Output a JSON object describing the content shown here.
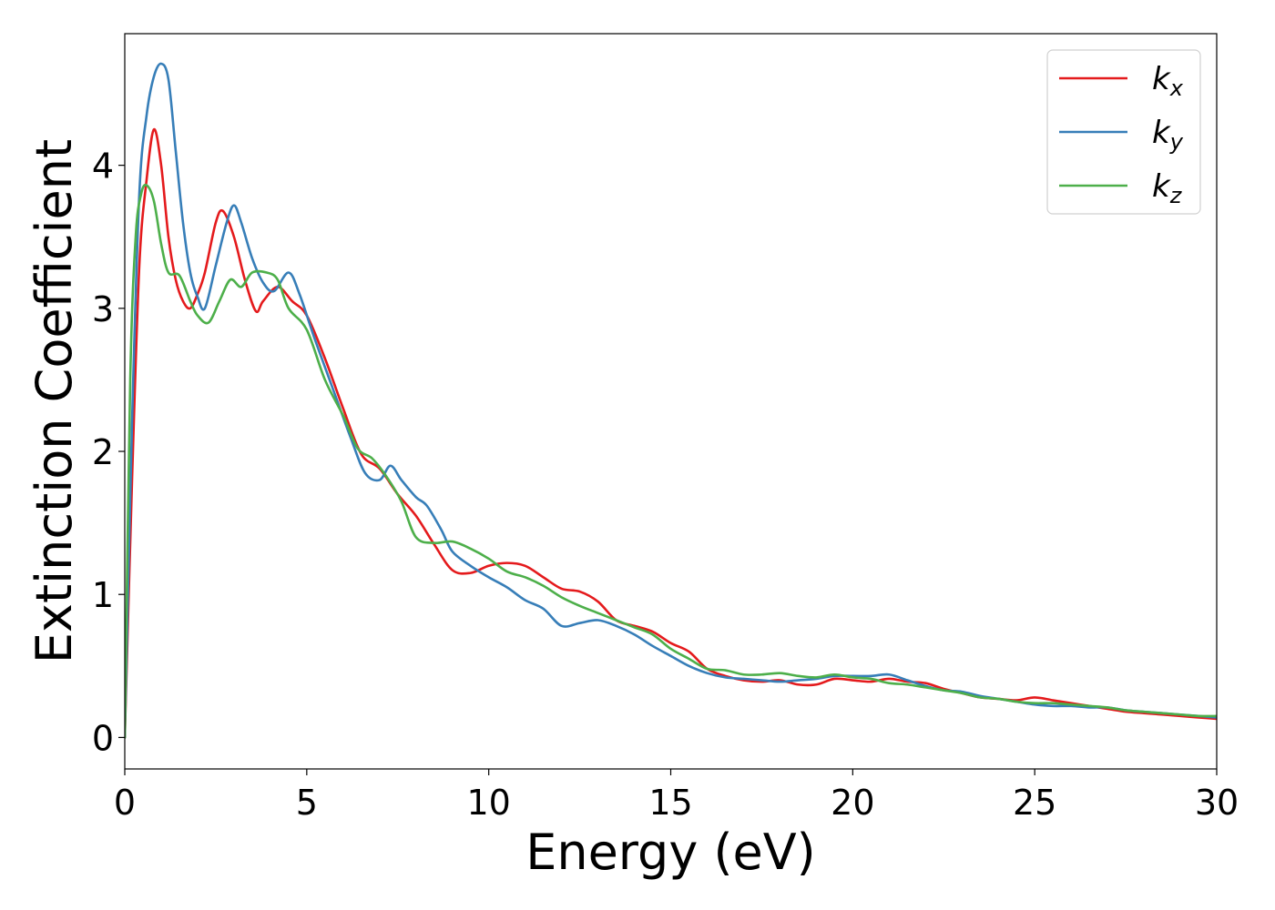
{
  "chart_data": {
    "type": "line",
    "title": "",
    "xlabel": "Energy (eV)",
    "ylabel": "Extinction Coefficient",
    "xlim": [
      0,
      30
    ],
    "ylim": [
      -0.22,
      4.92
    ],
    "xticks": [
      0,
      5,
      10,
      15,
      20,
      25,
      30
    ],
    "xtick_labels": [
      "0",
      "5",
      "10",
      "15",
      "20",
      "25",
      "30"
    ],
    "yticks": [
      0,
      1,
      2,
      3,
      4
    ],
    "ytick_labels": [
      "0",
      "1",
      "2",
      "3",
      "4"
    ],
    "grid": false,
    "legend_position": "top-right",
    "series": [
      {
        "name": "k_x",
        "legend_base": "k",
        "legend_sub": "x",
        "color": "#e41a1c",
        "points": [
          [
            0,
            0
          ],
          [
            0.2,
            1.8
          ],
          [
            0.4,
            3.3
          ],
          [
            0.6,
            3.9
          ],
          [
            0.8,
            4.25
          ],
          [
            1.0,
            4.0
          ],
          [
            1.2,
            3.5
          ],
          [
            1.4,
            3.2
          ],
          [
            1.6,
            3.05
          ],
          [
            1.8,
            3.0
          ],
          [
            2.0,
            3.1
          ],
          [
            2.2,
            3.25
          ],
          [
            2.5,
            3.6
          ],
          [
            2.7,
            3.68
          ],
          [
            3.0,
            3.5
          ],
          [
            3.3,
            3.2
          ],
          [
            3.6,
            2.98
          ],
          [
            3.8,
            3.05
          ],
          [
            4.2,
            3.15
          ],
          [
            4.6,
            3.05
          ],
          [
            5.0,
            2.95
          ],
          [
            5.5,
            2.65
          ],
          [
            6.0,
            2.3
          ],
          [
            6.5,
            1.98
          ],
          [
            7.0,
            1.88
          ],
          [
            7.5,
            1.7
          ],
          [
            8.0,
            1.55
          ],
          [
            8.5,
            1.35
          ],
          [
            9.0,
            1.17
          ],
          [
            9.5,
            1.15
          ],
          [
            10.0,
            1.2
          ],
          [
            10.5,
            1.22
          ],
          [
            11.0,
            1.2
          ],
          [
            11.5,
            1.12
          ],
          [
            12.0,
            1.04
          ],
          [
            12.5,
            1.02
          ],
          [
            13.0,
            0.95
          ],
          [
            13.5,
            0.82
          ],
          [
            14.0,
            0.78
          ],
          [
            14.5,
            0.74
          ],
          [
            15.0,
            0.66
          ],
          [
            15.5,
            0.6
          ],
          [
            16.0,
            0.48
          ],
          [
            16.5,
            0.43
          ],
          [
            17.0,
            0.4
          ],
          [
            17.5,
            0.39
          ],
          [
            18.0,
            0.4
          ],
          [
            18.5,
            0.37
          ],
          [
            19.0,
            0.37
          ],
          [
            19.5,
            0.41
          ],
          [
            20.0,
            0.4
          ],
          [
            20.5,
            0.39
          ],
          [
            21.0,
            0.41
          ],
          [
            21.5,
            0.39
          ],
          [
            22.0,
            0.38
          ],
          [
            22.5,
            0.34
          ],
          [
            23.0,
            0.31
          ],
          [
            23.5,
            0.28
          ],
          [
            24.0,
            0.27
          ],
          [
            24.5,
            0.26
          ],
          [
            25.0,
            0.28
          ],
          [
            25.5,
            0.26
          ],
          [
            26.0,
            0.24
          ],
          [
            26.5,
            0.22
          ],
          [
            27.0,
            0.2
          ],
          [
            27.5,
            0.18
          ],
          [
            28.0,
            0.17
          ],
          [
            28.5,
            0.16
          ],
          [
            29.0,
            0.15
          ],
          [
            29.5,
            0.14
          ],
          [
            30.0,
            0.13
          ]
        ]
      },
      {
        "name": "k_y",
        "legend_base": "k",
        "legend_sub": "y",
        "color": "#377eb8",
        "points": [
          [
            0,
            0
          ],
          [
            0.2,
            2.2
          ],
          [
            0.4,
            3.8
          ],
          [
            0.6,
            4.35
          ],
          [
            0.8,
            4.62
          ],
          [
            1.0,
            4.71
          ],
          [
            1.2,
            4.6
          ],
          [
            1.4,
            4.1
          ],
          [
            1.6,
            3.6
          ],
          [
            1.8,
            3.25
          ],
          [
            2.0,
            3.08
          ],
          [
            2.2,
            3.0
          ],
          [
            2.5,
            3.3
          ],
          [
            2.8,
            3.6
          ],
          [
            3.0,
            3.72
          ],
          [
            3.2,
            3.6
          ],
          [
            3.5,
            3.35
          ],
          [
            3.8,
            3.18
          ],
          [
            4.1,
            3.12
          ],
          [
            4.5,
            3.25
          ],
          [
            4.8,
            3.1
          ],
          [
            5.2,
            2.8
          ],
          [
            5.7,
            2.45
          ],
          [
            6.2,
            2.1
          ],
          [
            6.6,
            1.85
          ],
          [
            7.0,
            1.8
          ],
          [
            7.3,
            1.9
          ],
          [
            7.6,
            1.8
          ],
          [
            8.0,
            1.68
          ],
          [
            8.3,
            1.62
          ],
          [
            8.7,
            1.45
          ],
          [
            9.0,
            1.3
          ],
          [
            9.5,
            1.2
          ],
          [
            10.0,
            1.12
          ],
          [
            10.5,
            1.05
          ],
          [
            11.0,
            0.96
          ],
          [
            11.5,
            0.9
          ],
          [
            12.0,
            0.78
          ],
          [
            12.5,
            0.8
          ],
          [
            13.0,
            0.82
          ],
          [
            13.5,
            0.78
          ],
          [
            14.0,
            0.72
          ],
          [
            14.5,
            0.64
          ],
          [
            15.0,
            0.57
          ],
          [
            15.5,
            0.5
          ],
          [
            16.0,
            0.45
          ],
          [
            16.5,
            0.42
          ],
          [
            17.0,
            0.41
          ],
          [
            17.5,
            0.4
          ],
          [
            18.0,
            0.39
          ],
          [
            18.5,
            0.4
          ],
          [
            19.0,
            0.41
          ],
          [
            19.5,
            0.43
          ],
          [
            20.0,
            0.43
          ],
          [
            20.5,
            0.43
          ],
          [
            21.0,
            0.44
          ],
          [
            21.5,
            0.4
          ],
          [
            22.0,
            0.36
          ],
          [
            22.5,
            0.33
          ],
          [
            23.0,
            0.32
          ],
          [
            23.5,
            0.29
          ],
          [
            24.0,
            0.27
          ],
          [
            24.5,
            0.25
          ],
          [
            25.0,
            0.23
          ],
          [
            25.5,
            0.22
          ],
          [
            26.0,
            0.22
          ],
          [
            26.5,
            0.21
          ],
          [
            27.0,
            0.21
          ],
          [
            27.5,
            0.19
          ],
          [
            28.0,
            0.18
          ],
          [
            28.5,
            0.17
          ],
          [
            29.0,
            0.16
          ],
          [
            29.5,
            0.15
          ],
          [
            30.0,
            0.14
          ]
        ]
      },
      {
        "name": "k_z",
        "legend_base": "k",
        "legend_sub": "z",
        "color": "#4daf4a",
        "points": [
          [
            0,
            0
          ],
          [
            0.15,
            2.5
          ],
          [
            0.3,
            3.5
          ],
          [
            0.45,
            3.8
          ],
          [
            0.6,
            3.86
          ],
          [
            0.8,
            3.75
          ],
          [
            1.0,
            3.45
          ],
          [
            1.2,
            3.25
          ],
          [
            1.5,
            3.23
          ],
          [
            1.8,
            3.05
          ],
          [
            2.0,
            2.95
          ],
          [
            2.3,
            2.9
          ],
          [
            2.6,
            3.05
          ],
          [
            2.9,
            3.2
          ],
          [
            3.2,
            3.15
          ],
          [
            3.5,
            3.25
          ],
          [
            3.9,
            3.25
          ],
          [
            4.2,
            3.2
          ],
          [
            4.5,
            3.0
          ],
          [
            5.0,
            2.85
          ],
          [
            5.5,
            2.5
          ],
          [
            6.0,
            2.25
          ],
          [
            6.4,
            2.02
          ],
          [
            6.8,
            1.95
          ],
          [
            7.2,
            1.82
          ],
          [
            7.6,
            1.65
          ],
          [
            8.0,
            1.4
          ],
          [
            8.5,
            1.36
          ],
          [
            9.0,
            1.37
          ],
          [
            9.5,
            1.32
          ],
          [
            10.0,
            1.25
          ],
          [
            10.5,
            1.16
          ],
          [
            11.0,
            1.12
          ],
          [
            11.5,
            1.06
          ],
          [
            12.0,
            0.98
          ],
          [
            12.5,
            0.92
          ],
          [
            13.0,
            0.87
          ],
          [
            13.5,
            0.82
          ],
          [
            14.0,
            0.77
          ],
          [
            14.5,
            0.72
          ],
          [
            15.0,
            0.62
          ],
          [
            15.5,
            0.55
          ],
          [
            16.0,
            0.48
          ],
          [
            16.5,
            0.47
          ],
          [
            17.0,
            0.44
          ],
          [
            17.5,
            0.44
          ],
          [
            18.0,
            0.45
          ],
          [
            18.5,
            0.43
          ],
          [
            19.0,
            0.42
          ],
          [
            19.5,
            0.44
          ],
          [
            20.0,
            0.42
          ],
          [
            20.5,
            0.41
          ],
          [
            21.0,
            0.38
          ],
          [
            21.5,
            0.37
          ],
          [
            22.0,
            0.35
          ],
          [
            22.5,
            0.33
          ],
          [
            23.0,
            0.31
          ],
          [
            23.5,
            0.28
          ],
          [
            24.0,
            0.27
          ],
          [
            24.5,
            0.25
          ],
          [
            25.0,
            0.24
          ],
          [
            25.5,
            0.24
          ],
          [
            26.0,
            0.23
          ],
          [
            26.5,
            0.22
          ],
          [
            27.0,
            0.21
          ],
          [
            27.5,
            0.19
          ],
          [
            28.0,
            0.18
          ],
          [
            28.5,
            0.17
          ],
          [
            29.0,
            0.16
          ],
          [
            29.5,
            0.15
          ],
          [
            30.0,
            0.15
          ]
        ]
      }
    ]
  }
}
